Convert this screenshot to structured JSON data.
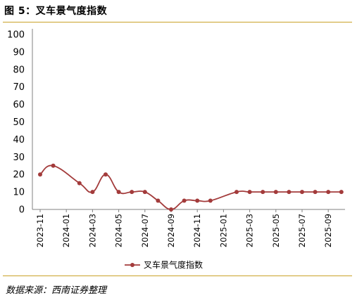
{
  "figure": {
    "title": "图 5：叉车景气度指数",
    "source": "数据来源：西南证券整理"
  },
  "colors": {
    "series": "#A33B3B",
    "rule": "#C9A227",
    "axis": "#808080"
  },
  "chart_data": {
    "type": "line",
    "legend_position": "bottom-center",
    "grid": false,
    "ylim": [
      0,
      100
    ],
    "yticks": [
      0,
      10,
      20,
      30,
      40,
      50,
      60,
      70,
      80,
      90,
      100
    ],
    "x_tick_labels": [
      "2023-11",
      "2024-01",
      "2024-03",
      "2024-05",
      "2024-07",
      "2024-09",
      "2024-11",
      "2025-01",
      "2025-03",
      "2025-05",
      "2025-07",
      "2025-09"
    ],
    "series": [
      {
        "name": "叉车景气度指数",
        "points": [
          {
            "x": "2023-11",
            "y": 20
          },
          {
            "x": "2023-12",
            "y": 25
          },
          {
            "x": "2024-02",
            "y": 15
          },
          {
            "x": "2024-03",
            "y": 10
          },
          {
            "x": "2024-04",
            "y": 20
          },
          {
            "x": "2024-05",
            "y": 10
          },
          {
            "x": "2024-06",
            "y": 10
          },
          {
            "x": "2024-07",
            "y": 10
          },
          {
            "x": "2024-08",
            "y": 5
          },
          {
            "x": "2024-09",
            "y": 0
          },
          {
            "x": "2024-10",
            "y": 5
          },
          {
            "x": "2024-11",
            "y": 5
          },
          {
            "x": "2024-12",
            "y": 5
          },
          {
            "x": "2025-02",
            "y": 10
          },
          {
            "x": "2025-03",
            "y": 10
          },
          {
            "x": "2025-04",
            "y": 10
          },
          {
            "x": "2025-05",
            "y": 10
          },
          {
            "x": "2025-06",
            "y": 10
          },
          {
            "x": "2025-07",
            "y": 10
          },
          {
            "x": "2025-08",
            "y": 10
          },
          {
            "x": "2025-09",
            "y": 10
          },
          {
            "x": "2025-10",
            "y": 10
          }
        ]
      }
    ]
  }
}
